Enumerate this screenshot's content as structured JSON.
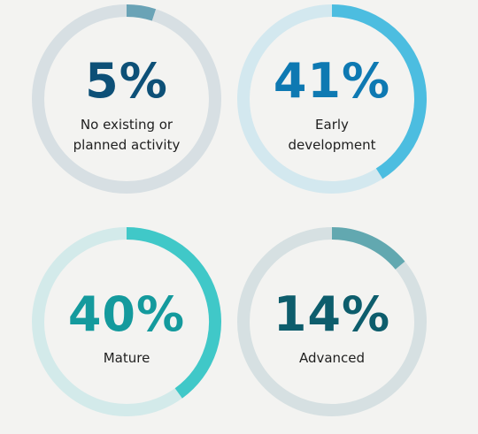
{
  "chart_data": [
    {
      "type": "pie",
      "value": 5,
      "value_text": "5%",
      "label_lines": [
        "No existing or",
        "planned activity"
      ],
      "color": "#6aa3b6",
      "track_color": "#d7dfe3",
      "text_color": "#0d5077"
    },
    {
      "type": "pie",
      "value": 41,
      "value_text": "41%",
      "label_lines": [
        "Early",
        "development"
      ],
      "color": "#4cbde0",
      "track_color": "#d3e8ef",
      "text_color": "#0e79b2"
    },
    {
      "type": "pie",
      "value": 40,
      "value_text": "40%",
      "label_lines": [
        "Mature"
      ],
      "color": "#40c8c8",
      "track_color": "#d3eaea",
      "text_color": "#149a9d"
    },
    {
      "type": "pie",
      "value": 14,
      "value_text": "14%",
      "label_lines": [
        "Advanced"
      ],
      "color": "#62a8b0",
      "track_color": "#d6e0e2",
      "text_color": "#0d5d6c"
    }
  ]
}
